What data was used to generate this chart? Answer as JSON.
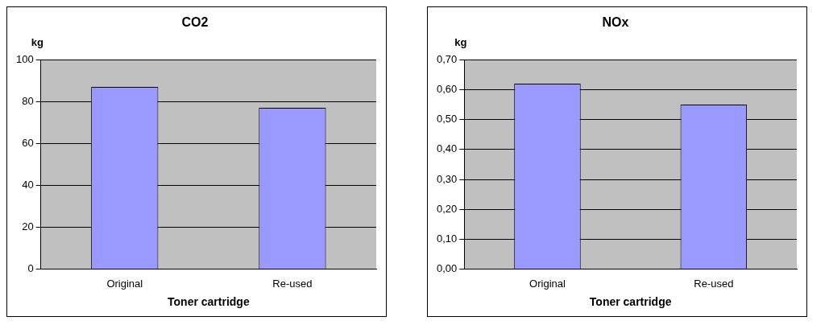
{
  "chart_data": [
    {
      "type": "bar",
      "title": "CO2",
      "xlabel": "Toner cartridge",
      "ylabel": "kg",
      "categories": [
        "Original",
        "Re-used"
      ],
      "values": [
        87,
        77
      ],
      "color": "#9999ff",
      "ylim": [
        0,
        100
      ],
      "yticks": [
        0,
        20,
        40,
        60,
        80,
        100
      ],
      "grid": "y",
      "legend": false
    },
    {
      "type": "bar",
      "title": "NOx",
      "xlabel": "Toner cartridge",
      "ylabel": "kg",
      "categories": [
        "Original",
        "Re-used"
      ],
      "values": [
        0.62,
        0.55
      ],
      "color": "#9999ff",
      "ylim": [
        0,
        0.7
      ],
      "yticks": [
        {
          "value": 0,
          "label": "0,00"
        },
        {
          "value": 0.1,
          "label": "0,10"
        },
        {
          "value": 0.2,
          "label": "0,20"
        },
        {
          "value": 0.3,
          "label": "0,30"
        },
        {
          "value": 0.4,
          "label": "0,40"
        },
        {
          "value": 0.5,
          "label": "0,50"
        },
        {
          "value": 0.6,
          "label": "0,60"
        },
        {
          "value": 0.7,
          "label": "0,70"
        }
      ],
      "grid": "y",
      "legend": false
    }
  ]
}
